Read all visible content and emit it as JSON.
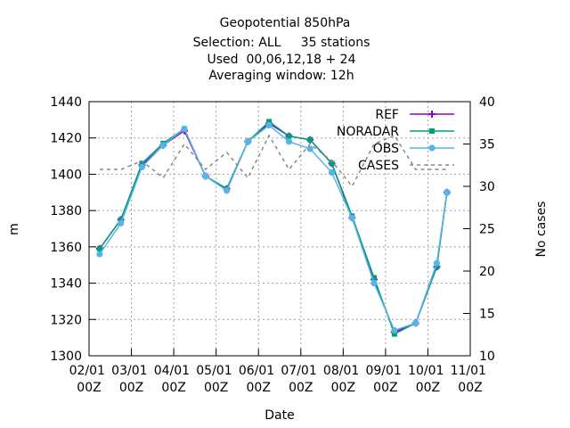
{
  "chart_data": {
    "type": "line",
    "title": "Geopotential 850hPa",
    "subtitle": [
      "Selection: ALL     35 stations",
      "Used  00,06,12,18 + 24",
      "Averaging window: 12h"
    ],
    "xlabel": "Date",
    "ylabel": "m",
    "y2label": "No cases",
    "x": [
      0.25,
      0.75,
      1.25,
      1.75,
      2.25,
      2.75,
      3.25,
      3.75,
      4.25,
      4.72,
      5.22,
      5.73,
      6.21,
      6.73,
      7.21,
      7.71,
      8.21,
      8.45
    ],
    "xlim": [
      0,
      9
    ],
    "xticks": [
      {
        "value": 0,
        "label": "02/01 00Z"
      },
      {
        "value": 1,
        "label": "03/01 00Z"
      },
      {
        "value": 2,
        "label": "04/01 00Z"
      },
      {
        "value": 3,
        "label": "05/01 00Z"
      },
      {
        "value": 4,
        "label": "06/01 00Z"
      },
      {
        "value": 5,
        "label": "07/01 00Z"
      },
      {
        "value": 6,
        "label": "08/01 00Z"
      },
      {
        "value": 7,
        "label": "09/01 00Z"
      },
      {
        "value": 8,
        "label": "10/01 00Z"
      },
      {
        "value": 9,
        "label": "11/01 00Z"
      }
    ],
    "ylim": [
      1300,
      1440
    ],
    "yticks": [
      1300,
      1320,
      1340,
      1360,
      1380,
      1400,
      1420,
      1440
    ],
    "y2lim": [
      10,
      40
    ],
    "y2ticks": [
      10,
      15,
      20,
      25,
      30,
      35,
      40
    ],
    "grid": true,
    "legend": "top right",
    "series": [
      {
        "name": "REF",
        "color": "#9400d3",
        "marker": "plus",
        "values": [
          1359,
          1375,
          1405,
          1416,
          1424,
          1399,
          1392,
          1418,
          1428,
          1421,
          1419,
          1406,
          1376,
          1342,
          1313,
          1318,
          1349,
          1390
        ]
      },
      {
        "name": "NORADAR",
        "color": "#009e73",
        "marker": "square",
        "values": [
          1359,
          1375,
          1406,
          1417,
          1425,
          1399,
          1392,
          1418,
          1429,
          1421,
          1419,
          1406,
          1377,
          1343,
          1312,
          1318,
          1349,
          1390
        ]
      },
      {
        "name": "OBS",
        "color": "#56b4e9",
        "marker": "star",
        "values": [
          1356,
          1373,
          1404,
          1416,
          1425,
          1399,
          1391,
          1418,
          1427,
          1418,
          1414,
          1401,
          1376,
          1340,
          1314,
          1318,
          1351,
          1390
        ]
      },
      {
        "name": "CASES",
        "color": "#888888",
        "dashed": true,
        "axis": "y2",
        "values": [
          32,
          32,
          33,
          31,
          35,
          32,
          34,
          31,
          36,
          32,
          35,
          33,
          30,
          35,
          36,
          32,
          32,
          32
        ]
      }
    ]
  }
}
